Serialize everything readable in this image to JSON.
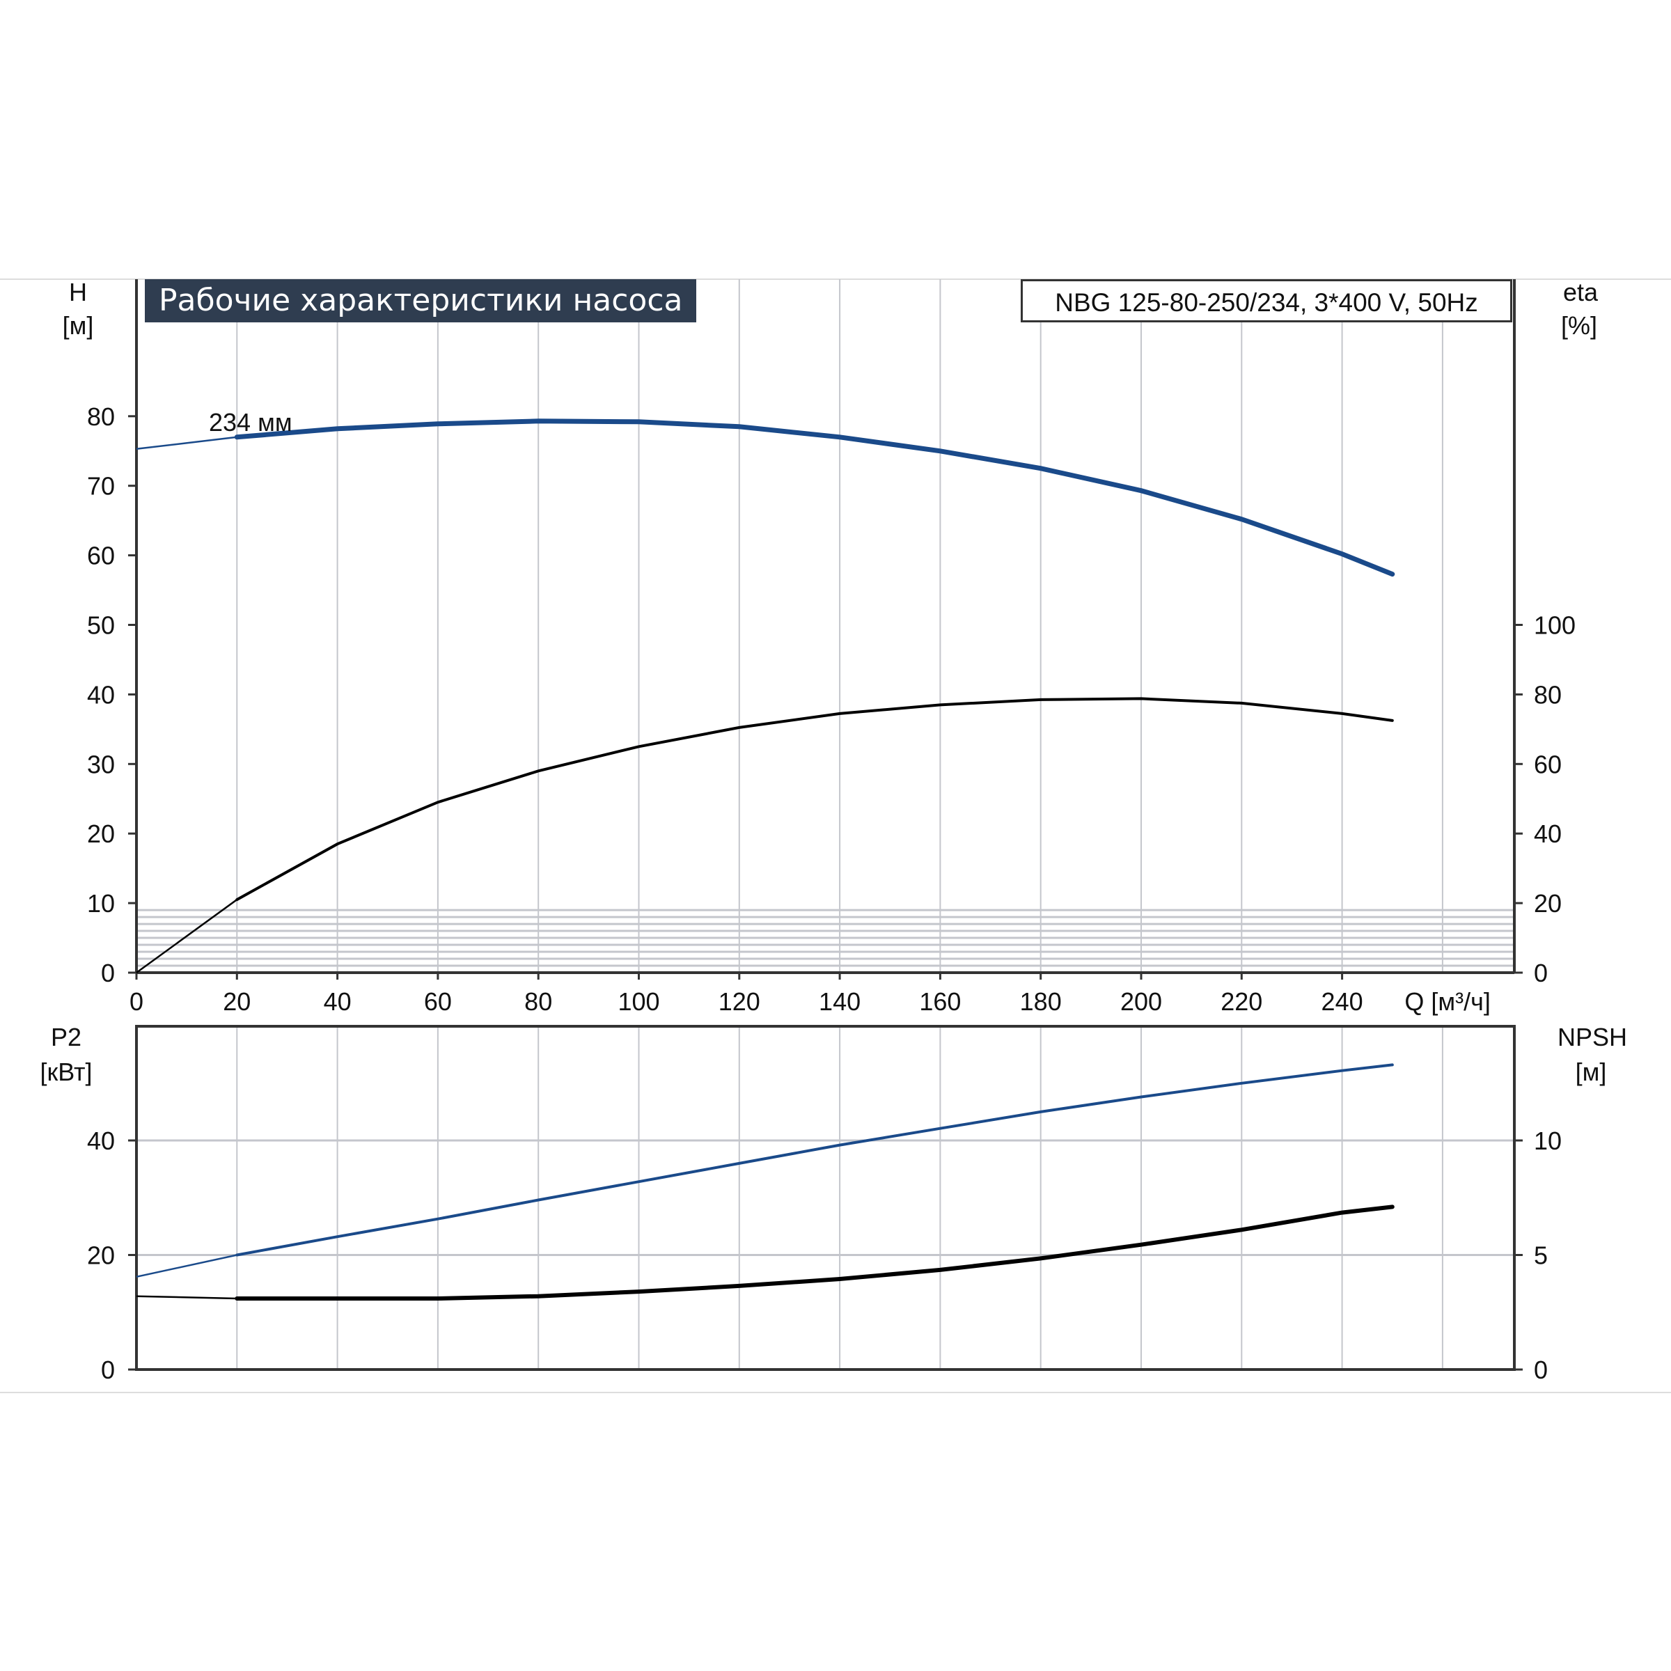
{
  "chart_data": [
    {
      "type": "line",
      "title": "Рабочие характеристики насоса",
      "subtitle": "NBG 125-80-250/234, 3*400 V, 50Hz",
      "curve_label": "234 мм",
      "xlabel": "Q [м³/ч]",
      "ylabel": "H [м]",
      "ylabel_name": "H",
      "ylabel_unit": "[м]",
      "y2label_name": "eta",
      "y2label_unit": "[%]",
      "xlim": [
        0,
        274
      ],
      "ylim": [
        0,
        100
      ],
      "y2lim": [
        0,
        100
      ],
      "xticks": [
        0,
        20,
        40,
        60,
        80,
        100,
        120,
        140,
        160,
        180,
        200,
        220,
        240
      ],
      "yticks": [
        0,
        10,
        20,
        30,
        40,
        50,
        60,
        70,
        80
      ],
      "y2ticks": [
        0,
        20,
        40,
        60,
        80,
        100
      ],
      "grid": true,
      "series": [
        {
          "name": "H",
          "axis": "left",
          "color": "#1a4a8a",
          "x": [
            0,
            20,
            40,
            60,
            80,
            100,
            120,
            140,
            160,
            180,
            200,
            220,
            240,
            250
          ],
          "y": [
            75.3,
            77.0,
            78.2,
            78.9,
            79.3,
            79.2,
            78.5,
            77.0,
            75.0,
            72.5,
            69.3,
            65.2,
            60.2,
            57.3
          ]
        },
        {
          "name": "eta",
          "axis": "right",
          "color": "#000000",
          "x": [
            0,
            20,
            40,
            60,
            80,
            100,
            120,
            140,
            160,
            180,
            200,
            220,
            240,
            250
          ],
          "y": [
            0,
            21,
            37,
            49,
            58,
            65,
            70.5,
            74.5,
            77,
            78.5,
            78.8,
            77.5,
            74.5,
            72.5
          ]
        }
      ]
    },
    {
      "type": "line",
      "ylabel_name": "P2",
      "ylabel_unit": "[кВт]",
      "y2label_name": "NPSH",
      "y2label_unit": "[м]",
      "xlim": [
        0,
        274
      ],
      "ylim": [
        0,
        60
      ],
      "y2lim": [
        0,
        15
      ],
      "yticks": [
        0,
        20,
        40
      ],
      "y2ticks": [
        0,
        5,
        10
      ],
      "grid": true,
      "series": [
        {
          "name": "P2",
          "axis": "left",
          "color": "#1a4a8a",
          "x": [
            0,
            20,
            40,
            60,
            80,
            100,
            120,
            140,
            160,
            180,
            200,
            220,
            240,
            250
          ],
          "y": [
            16.2,
            20.0,
            23.2,
            26.3,
            29.6,
            32.8,
            36.0,
            39.2,
            42.1,
            45.0,
            47.6,
            50.0,
            52.2,
            53.2
          ]
        },
        {
          "name": "NPSH",
          "axis": "right",
          "color": "#000000",
          "x": [
            0,
            20,
            40,
            60,
            80,
            100,
            120,
            140,
            160,
            180,
            200,
            220,
            240,
            250
          ],
          "y": [
            3.2,
            3.1,
            3.1,
            3.1,
            3.2,
            3.4,
            3.65,
            3.95,
            4.35,
            4.85,
            5.45,
            6.1,
            6.85,
            7.1
          ]
        }
      ]
    }
  ]
}
